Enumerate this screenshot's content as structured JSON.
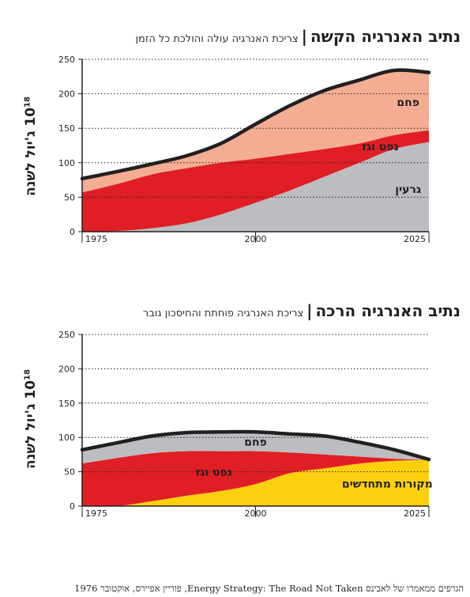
{
  "chart_data": [
    {
      "type": "area",
      "title": "נתיב האנרגיה הקשה",
      "subtitle": "צריכת האנרגיה עולה והולכת כל הזמן",
      "ylabel_text": "ג'יול לשנה",
      "ylabel_unit": "10",
      "ylabel_exp": "18",
      "ylim": [
        0,
        250
      ],
      "yticks": [
        0,
        50,
        100,
        150,
        200,
        250
      ],
      "xlim": [
        1975,
        2025
      ],
      "xticks": [
        1975,
        2000,
        2025
      ],
      "x": [
        1975,
        1980,
        1985,
        1990,
        1995,
        2000,
        2005,
        2010,
        2015,
        2020,
        2025
      ],
      "stacked": true,
      "series": [
        {
          "name": "גרעין",
          "color": "#bbbdc0",
          "values": [
            0,
            1,
            5,
            12,
            25,
            42,
            60,
            80,
            100,
            120,
            130
          ]
        },
        {
          "name": "נפט וגז",
          "color": "#e01e25",
          "values": [
            57,
            68,
            78,
            80,
            75,
            64,
            53,
            40,
            28,
            20,
            17
          ]
        },
        {
          "name": "פחם",
          "color": "#f4ac92",
          "values": [
            20,
            18,
            15,
            18,
            28,
            50,
            70,
            85,
            92,
            94,
            84
          ]
        }
      ],
      "series_label_anchor": [
        2022,
        2018,
        2022
      ],
      "total_line_color": "#231f20",
      "grid": "dotted horizontal"
    },
    {
      "type": "area",
      "title": "נתיב האנרגיה הרכה",
      "subtitle": "צריכת האנרגיה פוחתת והחיסכון גובר",
      "ylabel_text": "ג'יול לשנה",
      "ylabel_unit": "10",
      "ylabel_exp": "18",
      "ylim": [
        0,
        250
      ],
      "yticks": [
        0,
        50,
        100,
        150,
        200,
        250
      ],
      "xlim": [
        1975,
        2025
      ],
      "xticks": [
        1975,
        2000,
        2025
      ],
      "x": [
        1975,
        1980,
        1985,
        1990,
        1995,
        2000,
        2005,
        2010,
        2015,
        2020,
        2025
      ],
      "stacked": true,
      "series": [
        {
          "name": "מקורות מתחדשים",
          "color": "#fcd00f",
          "values": [
            0,
            0,
            7,
            15,
            22,
            32,
            48,
            55,
            62,
            66,
            67
          ]
        },
        {
          "name": "נפט וגז",
          "color": "#e01e25",
          "values": [
            62,
            70,
            70,
            65,
            58,
            48,
            30,
            20,
            10,
            3,
            0
          ]
        },
        {
          "name": "פחם",
          "color": "#bbbdc0",
          "values": [
            20,
            22,
            25,
            27,
            28,
            28,
            27,
            27,
            21,
            13,
            1
          ]
        }
      ],
      "series_label_anchor": [
        2019,
        1994,
        2000
      ],
      "total_line_color": "#231f20",
      "grid": "dotted horizontal"
    }
  ],
  "footer": {
    "prefix": "הגרפים ממאמרו של לאבינס ",
    "english": "Energy Strategy: The Road Not Taken",
    "suffix": ", פוריין אפיירס, אוקטובר 1976"
  }
}
